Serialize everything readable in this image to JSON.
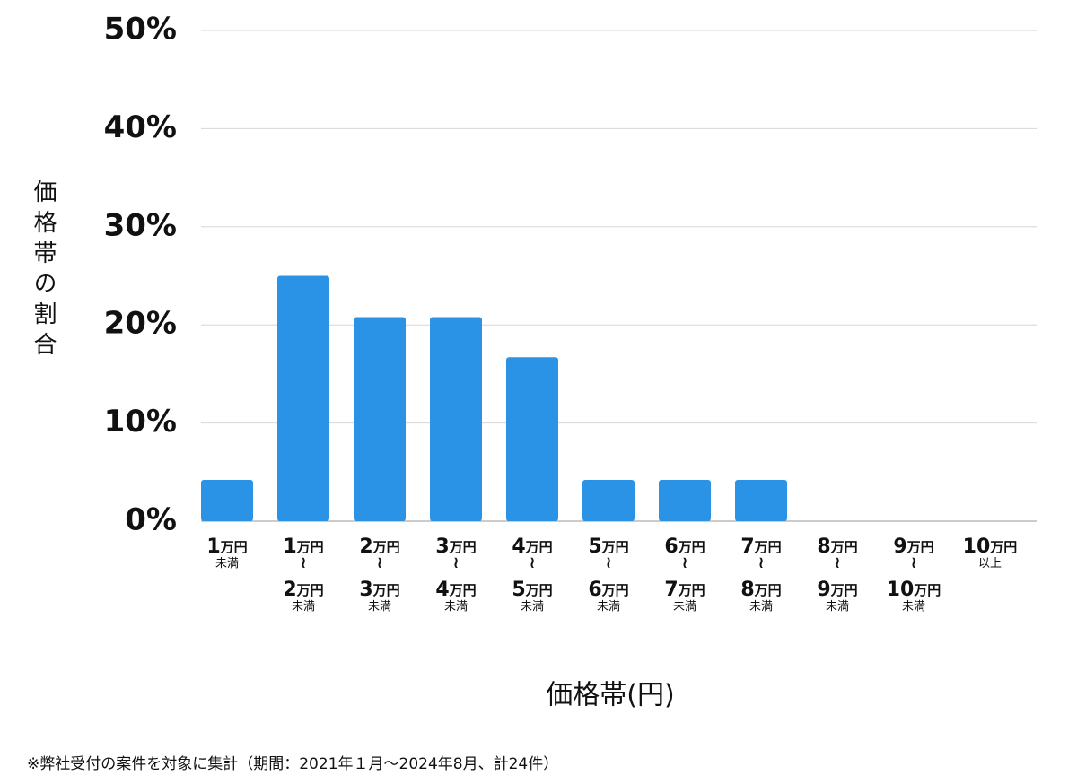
{
  "chart_data": {
    "type": "bar",
    "y_label": "価格帯の割合",
    "x_label": "価格帯(円)",
    "footnote": "※弊社受付の案件を対象に集計（期間：2021年１月～2024年8月、計24件）",
    "categories": [
      "1万円\n未満",
      "1万円\n≀\n2万円\n未満",
      "2万円\n≀\n3万円\n未満",
      "3万円\n≀\n4万円\n未満",
      "4万円\n≀\n5万円\n未満",
      "5万円\n≀\n6万円\n未満",
      "6万円\n≀\n7万円\n未満",
      "7万円\n≀\n8万円\n未満",
      "8万円\n≀\n9万円\n未満",
      "9万円\n≀\n10万円\n未満",
      "10万円\n以上"
    ],
    "values": [
      4.2,
      25,
      20.8,
      20.8,
      16.7,
      4.2,
      4.2,
      4.2,
      0,
      0,
      0
    ],
    "color": "#2a93e6",
    "ylim": [
      0,
      50
    ],
    "yticks": [
      {
        "value": 0,
        "label": "0%"
      },
      {
        "value": 10,
        "label": "10%"
      },
      {
        "value": 20,
        "label": "20%"
      },
      {
        "value": 30,
        "label": "30%"
      },
      {
        "value": 40,
        "label": "40%"
      },
      {
        "value": 50,
        "label": "50%"
      }
    ],
    "grid": true
  }
}
